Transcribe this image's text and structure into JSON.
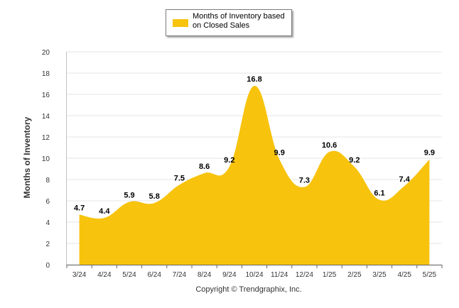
{
  "chart_data": {
    "type": "area",
    "categories": [
      "3/24",
      "4/24",
      "5/24",
      "6/24",
      "7/24",
      "8/24",
      "9/24",
      "10/24",
      "11/24",
      "12/24",
      "1/25",
      "2/25",
      "3/25",
      "4/25",
      "5/25"
    ],
    "series": [
      {
        "name": "Months of Inventory based on Closed Sales",
        "values": [
          4.7,
          4.4,
          5.9,
          5.8,
          7.5,
          8.6,
          9.2,
          16.8,
          9.9,
          7.3,
          10.6,
          9.2,
          6.1,
          7.4,
          9.9
        ],
        "color": "#f7c30d"
      }
    ],
    "ylabel": "Months of Inventory",
    "xlabel": "",
    "ylim": [
      0,
      20
    ],
    "yticks": [
      0,
      2,
      4,
      6,
      8,
      10,
      12,
      14,
      16,
      18,
      20
    ],
    "data_labels": true,
    "legend_position": "top-center",
    "grid": true
  },
  "legend": {
    "label": "Months of Inventory based on Closed Sales"
  },
  "footer": {
    "copyright": "Copyright © Trendgraphix, Inc."
  },
  "colors": {
    "area": "#f7c30d",
    "grid": "#e6e6e6",
    "axis": "#666666"
  }
}
